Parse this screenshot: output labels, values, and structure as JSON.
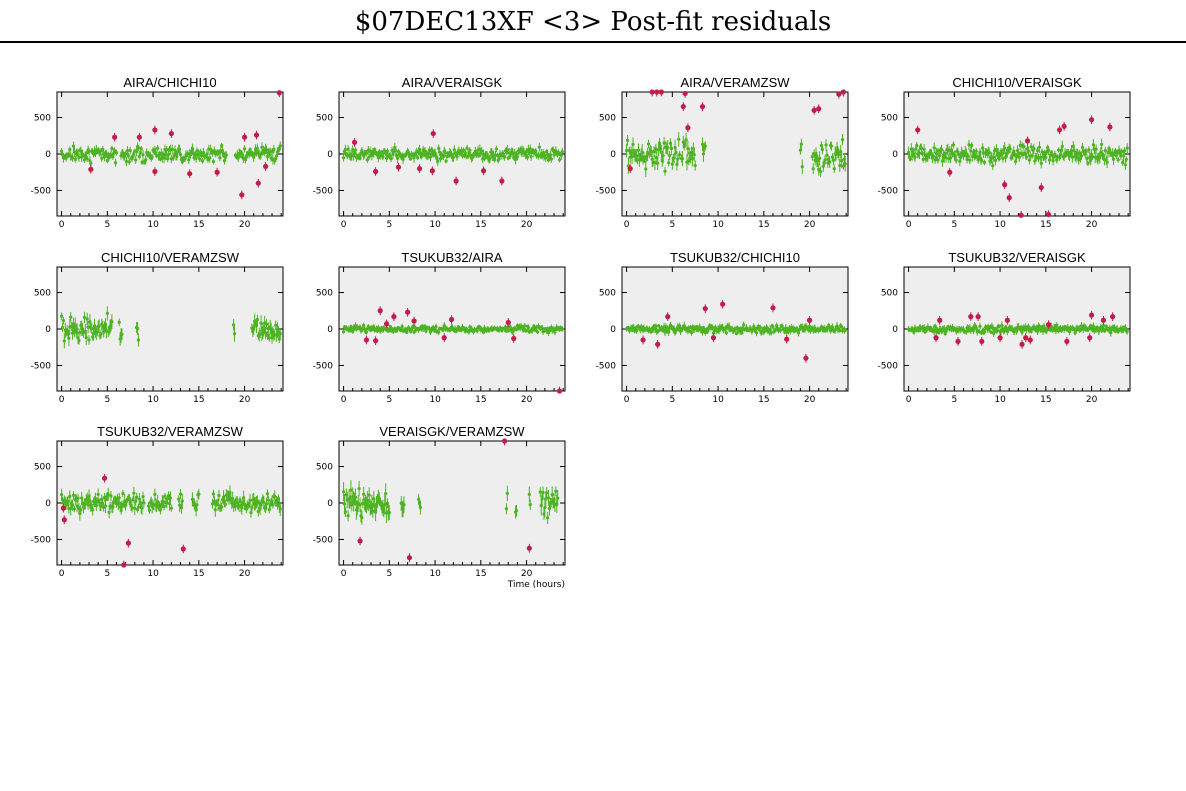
{
  "page": {
    "title": "$07DEC13XF <3> Post-fit residuals"
  },
  "colors": {
    "good": "#4db323",
    "flagged": "#c31c48",
    "panel_bg": "#eeeeee",
    "axis": "#000000"
  },
  "shared_axes": {
    "x_ticks": [
      "0",
      "5",
      "10",
      "15",
      "20"
    ],
    "y_ticks": [
      "500",
      "0",
      "-500"
    ],
    "xlabel": "Time (hours)"
  },
  "chart_data": [
    {
      "type": "scatter",
      "title": "AIRA/CHICHI10",
      "xlim": [
        -0.5,
        24.2
      ],
      "ylim": [
        -850,
        850
      ],
      "xlabel": "",
      "segments": [
        [
          0,
          6
        ],
        [
          6.5,
          18
        ],
        [
          19,
          24
        ]
      ],
      "noise": 70,
      "err": 50,
      "flagged": [
        {
          "x": 5.8,
          "y": 230
        },
        {
          "x": 3.2,
          "y": -210
        },
        {
          "x": 8.5,
          "y": 230
        },
        {
          "x": 10.2,
          "y": 330
        },
        {
          "x": 10.2,
          "y": -240
        },
        {
          "x": 12,
          "y": 280
        },
        {
          "x": 14,
          "y": -270
        },
        {
          "x": 17,
          "y": -250
        },
        {
          "x": 19.7,
          "y": -560
        },
        {
          "x": 20,
          "y": 230
        },
        {
          "x": 21.3,
          "y": 260
        },
        {
          "x": 21.5,
          "y": -400
        },
        {
          "x": 22.3,
          "y": -170
        },
        {
          "x": 23.8,
          "y": 840
        }
      ]
    },
    {
      "type": "scatter",
      "title": "AIRA/VERAISGK",
      "xlim": [
        -0.5,
        24.2
      ],
      "ylim": [
        -850,
        850
      ],
      "xlabel": "",
      "segments": [
        [
          0,
          24
        ]
      ],
      "noise": 55,
      "err": 50,
      "flagged": [
        {
          "x": 1.2,
          "y": 160
        },
        {
          "x": 3.5,
          "y": -240
        },
        {
          "x": 6,
          "y": -180
        },
        {
          "x": 8.3,
          "y": -200
        },
        {
          "x": 9.7,
          "y": -230
        },
        {
          "x": 9.8,
          "y": 280
        },
        {
          "x": 12.3,
          "y": -370
        },
        {
          "x": 15.3,
          "y": -230
        },
        {
          "x": 17.3,
          "y": -370
        }
      ]
    },
    {
      "type": "scatter",
      "title": "AIRA/VERAMZSW",
      "xlim": [
        -0.5,
        24.2
      ],
      "ylim": [
        -850,
        850
      ],
      "xlabel": "",
      "segments": [
        [
          0,
          5.8
        ],
        [
          6,
          7.5
        ],
        [
          8.3,
          8.6
        ],
        [
          19,
          19.3
        ],
        [
          20.3,
          24
        ]
      ],
      "noise": 130,
      "err": 80,
      "flagged": [
        {
          "x": 0.4,
          "y": -200
        },
        {
          "x": 2.8,
          "y": 850
        },
        {
          "x": 3.3,
          "y": 850
        },
        {
          "x": 3.8,
          "y": 850
        },
        {
          "x": 6.2,
          "y": 650
        },
        {
          "x": 6.4,
          "y": 830
        },
        {
          "x": 6.7,
          "y": 360
        },
        {
          "x": 8.3,
          "y": 650
        },
        {
          "x": 20.5,
          "y": 600
        },
        {
          "x": 21,
          "y": 620
        },
        {
          "x": 23.2,
          "y": 820
        },
        {
          "x": 23.7,
          "y": 850
        }
      ]
    },
    {
      "type": "scatter",
      "title": "CHICHI10/VERAISGK",
      "xlim": [
        -0.5,
        24.2
      ],
      "ylim": [
        -850,
        850
      ],
      "xlabel": "",
      "segments": [
        [
          0,
          24
        ]
      ],
      "noise": 80,
      "err": 60,
      "flagged": [
        {
          "x": 1,
          "y": 330
        },
        {
          "x": 4.5,
          "y": -250
        },
        {
          "x": 10.5,
          "y": -420
        },
        {
          "x": 11,
          "y": -600
        },
        {
          "x": 12.3,
          "y": -840
        },
        {
          "x": 13,
          "y": 180
        },
        {
          "x": 14.5,
          "y": -460
        },
        {
          "x": 15.3,
          "y": -830
        },
        {
          "x": 16.5,
          "y": 330
        },
        {
          "x": 17,
          "y": 380
        },
        {
          "x": 20,
          "y": 470
        },
        {
          "x": 22,
          "y": 370
        }
      ]
    },
    {
      "type": "scatter",
      "title": "CHICHI10/VERAMZSW",
      "xlim": [
        -0.5,
        24.2
      ],
      "ylim": [
        -850,
        850
      ],
      "xlabel": "",
      "segments": [
        [
          0,
          5.5
        ],
        [
          6.3,
          6.6
        ],
        [
          8.2,
          8.4
        ],
        [
          18.8,
          19
        ],
        [
          20.8,
          24
        ]
      ],
      "noise": 110,
      "err": 80,
      "flagged": []
    },
    {
      "type": "scatter",
      "title": "TSUKUB32/AIRA",
      "xlim": [
        -0.5,
        24.2
      ],
      "ylim": [
        -850,
        850
      ],
      "xlabel": "",
      "segments": [
        [
          0,
          24
        ]
      ],
      "noise": 30,
      "err": 35,
      "flagged": [
        {
          "x": 2.5,
          "y": -150
        },
        {
          "x": 3.5,
          "y": -160
        },
        {
          "x": 4,
          "y": 250
        },
        {
          "x": 4.7,
          "y": 70
        },
        {
          "x": 5.5,
          "y": 170
        },
        {
          "x": 7,
          "y": 230
        },
        {
          "x": 7.7,
          "y": 110
        },
        {
          "x": 11,
          "y": -120
        },
        {
          "x": 11.8,
          "y": 130
        },
        {
          "x": 18,
          "y": 90
        },
        {
          "x": 18.6,
          "y": -130
        },
        {
          "x": 23.6,
          "y": -850
        }
      ]
    },
    {
      "type": "scatter",
      "title": "TSUKUB32/CHICHI10",
      "xlim": [
        -0.5,
        24.2
      ],
      "ylim": [
        -850,
        850
      ],
      "xlabel": "",
      "segments": [
        [
          0,
          24
        ]
      ],
      "noise": 35,
      "err": 40,
      "flagged": [
        {
          "x": 1.8,
          "y": -150
        },
        {
          "x": 3.4,
          "y": -210
        },
        {
          "x": 4.5,
          "y": 170
        },
        {
          "x": 8.6,
          "y": 280
        },
        {
          "x": 9.5,
          "y": -120
        },
        {
          "x": 10.5,
          "y": 340
        },
        {
          "x": 16,
          "y": 290
        },
        {
          "x": 17.5,
          "y": -140
        },
        {
          "x": 19.6,
          "y": -400
        },
        {
          "x": 20,
          "y": 120
        }
      ]
    },
    {
      "type": "scatter",
      "title": "TSUKUB32/VERAISGK",
      "xlim": [
        -0.5,
        24.2
      ],
      "ylim": [
        -850,
        850
      ],
      "xlabel": "",
      "segments": [
        [
          0,
          24
        ]
      ],
      "noise": 35,
      "err": 40,
      "flagged": [
        {
          "x": 3,
          "y": -120
        },
        {
          "x": 3.4,
          "y": 120
        },
        {
          "x": 5.4,
          "y": -170
        },
        {
          "x": 6.8,
          "y": 170
        },
        {
          "x": 7.6,
          "y": 170
        },
        {
          "x": 8,
          "y": -170
        },
        {
          "x": 10,
          "y": -120
        },
        {
          "x": 10.8,
          "y": 120
        },
        {
          "x": 12.4,
          "y": -210
        },
        {
          "x": 12.8,
          "y": -120
        },
        {
          "x": 13.3,
          "y": -150
        },
        {
          "x": 15.3,
          "y": 60
        },
        {
          "x": 17.3,
          "y": -170
        },
        {
          "x": 19.8,
          "y": -120
        },
        {
          "x": 20,
          "y": 190
        },
        {
          "x": 21.3,
          "y": 120
        },
        {
          "x": 22.3,
          "y": 170
        }
      ]
    },
    {
      "type": "scatter",
      "title": "TSUKUB32/VERAMZSW",
      "xlim": [
        -0.5,
        24.2
      ],
      "ylim": [
        -850,
        850
      ],
      "xlabel": "",
      "segments": [
        [
          0,
          9
        ],
        [
          9.5,
          12
        ],
        [
          12.8,
          13.2
        ],
        [
          14.3,
          15
        ],
        [
          16.5,
          24
        ]
      ],
      "noise": 90,
      "err": 70,
      "flagged": [
        {
          "x": 0.2,
          "y": -70
        },
        {
          "x": 0.3,
          "y": -230
        },
        {
          "x": 4.7,
          "y": 340
        },
        {
          "x": 6.8,
          "y": -850
        },
        {
          "x": 7.3,
          "y": -550
        },
        {
          "x": 13.3,
          "y": -630
        }
      ]
    },
    {
      "type": "scatter",
      "title": "VERAISGK/VERAMZSW",
      "xlim": [
        -0.5,
        24.2
      ],
      "ylim": [
        -850,
        850
      ],
      "xlabel": "Time (hours)",
      "segments": [
        [
          0,
          5
        ],
        [
          6.3,
          6.6
        ],
        [
          8.2,
          8.4
        ],
        [
          17.8,
          18
        ],
        [
          18.8,
          19
        ],
        [
          20.3,
          20.5
        ],
        [
          21.5,
          23.5
        ]
      ],
      "noise": 130,
      "err": 100,
      "flagged": [
        {
          "x": 1.8,
          "y": -520
        },
        {
          "x": 7.2,
          "y": -750
        },
        {
          "x": 17.6,
          "y": 860
        },
        {
          "x": 20.3,
          "y": -620
        }
      ]
    }
  ]
}
